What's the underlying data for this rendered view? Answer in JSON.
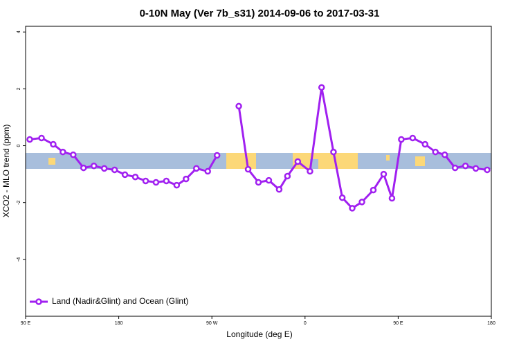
{
  "chart_data": {
    "type": "line",
    "title": "0-10N May (Ver 7b_s31)   2014-09-06 to 2017-03-31",
    "xlabel": "Longitude (deg E)",
    "ylabel": "XCO2 - MLO trend (ppm)",
    "xlim": [
      90,
      540
    ],
    "ylim": [
      -6,
      4.2
    ],
    "xticks": [
      {
        "value": 90,
        "label": "90 E"
      },
      180,
      {
        "value": 270,
        "label": "90 W"
      },
      {
        "value": 360,
        "label": "0"
      },
      {
        "value": 450,
        "label": "90 E"
      },
      {
        "value": 540,
        "label": "180"
      }
    ],
    "yticks": [
      4,
      2,
      0,
      -2,
      -4
    ],
    "legend": "lower left",
    "x": [
      94,
      105.4,
      116.7,
      126,
      136,
      146,
      156,
      166,
      176,
      186,
      196,
      206,
      216,
      226,
      236,
      245,
      255,
      266,
      275,
      285,
      296,
      305,
      315,
      325,
      335,
      343,
      353,
      364.8,
      376,
      387.5,
      396,
      405.6,
      415,
      426,
      436,
      444,
      453,
      464,
      476,
      486,
      495,
      505,
      515,
      525,
      536
    ],
    "series": [
      {
        "name": "Land (Nadir&Glint) and Ocean (Glint)",
        "color": "#a020f0",
        "values": [
          0.22,
          0.27,
          0.05,
          -0.22,
          -0.32,
          -0.78,
          -0.71,
          -0.8,
          -0.85,
          -1.02,
          -1.1,
          -1.24,
          -1.29,
          -1.24,
          -1.39,
          -1.17,
          -0.8,
          -0.9,
          -0.34,
          null,
          1.39,
          -0.83,
          -1.29,
          -1.22,
          -1.54,
          -1.07,
          -0.56,
          -0.9,
          2.05,
          -0.22,
          -1.83,
          -2.2,
          -1.98,
          -1.56,
          -1.0,
          -1.85,
          0.22,
          0.27,
          0.05,
          -0.22,
          -0.32,
          -0.78,
          -0.71,
          -0.8,
          -0.85
        ]
      }
    ]
  }
}
